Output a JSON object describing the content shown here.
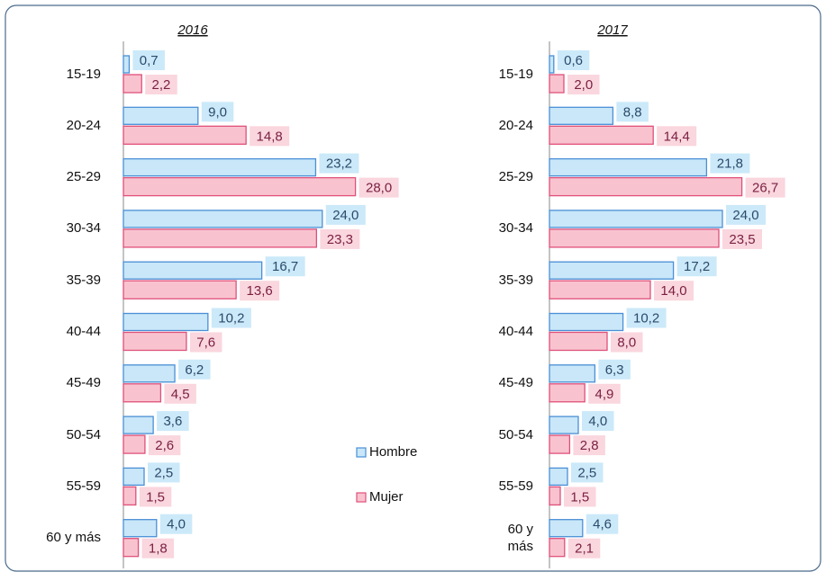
{
  "chart_data": [
    {
      "type": "bar",
      "orientation": "horizontal",
      "title": "2016",
      "categories": [
        "15-19",
        "20-24",
        "25-29",
        "30-34",
        "35-39",
        "40-44",
        "45-49",
        "50-54",
        "55-59",
        "60 y más"
      ],
      "series": [
        {
          "name": "Hombre",
          "color": "#c9e7f8",
          "edge": "#4a8fd6",
          "values": [
            0.7,
            9.0,
            23.2,
            24.0,
            16.7,
            10.2,
            6.2,
            3.6,
            2.5,
            4.0
          ],
          "value_labels": [
            "0,7",
            "9,0",
            "23,2",
            "24,0",
            "16,7",
            "10,2",
            "6,2",
            "3,6",
            "2,5",
            "4,0"
          ]
        },
        {
          "name": "Mujer",
          "color": "#f8c3cf",
          "edge": "#e0507a",
          "values": [
            2.2,
            14.8,
            28.0,
            23.3,
            13.6,
            7.6,
            4.5,
            2.6,
            1.5,
            1.8
          ],
          "value_labels": [
            "2,2",
            "14,8",
            "28,0",
            "23,3",
            "13,6",
            "7,6",
            "4,5",
            "2,6",
            "1,5",
            "1,8"
          ]
        }
      ]
    },
    {
      "type": "bar",
      "orientation": "horizontal",
      "title": "2017",
      "categories": [
        "15-19",
        "20-24",
        "25-29",
        "30-34",
        "35-39",
        "40-44",
        "45-49",
        "50-54",
        "55-59",
        "60 y más"
      ],
      "series": [
        {
          "color": "#c9e7f8",
          "edge": "#4a8fd6",
          "values": [
            0.6,
            8.8,
            21.8,
            24.0,
            17.2,
            10.2,
            6.3,
            4.0,
            2.5,
            4.6
          ],
          "value_labels": [
            "0,6",
            "8,8",
            "21,8",
            "24,0",
            "17,2",
            "10,2",
            "6,3",
            "4,0",
            "2,5",
            "4,6"
          ]
        },
        {
          "color": "#f8c3cf",
          "edge": "#e0507a",
          "values": [
            2.0,
            14.4,
            26.7,
            23.5,
            14.0,
            8.0,
            4.9,
            2.8,
            1.5,
            2.1
          ],
          "value_labels": [
            "2,0",
            "14,4",
            "26,7",
            "23,5",
            "14,0",
            "8,0",
            "4,9",
            "2,8",
            "1,5",
            "2,1"
          ]
        }
      ]
    }
  ]
}
